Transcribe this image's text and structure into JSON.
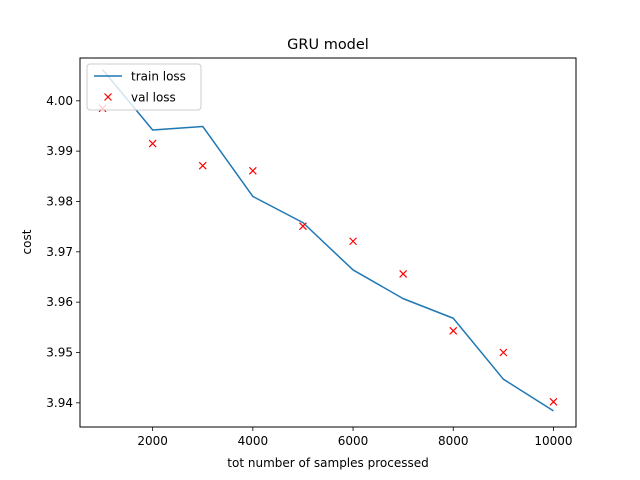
{
  "chart_data": {
    "type": "line",
    "title": "GRU model",
    "xlabel": "tot number of samples processed",
    "ylabel": "cost",
    "xlim": [
      550,
      10450
    ],
    "ylim": [
      3.9352,
      4.0085
    ],
    "xticks": [
      2000,
      4000,
      6000,
      8000,
      10000
    ],
    "xtick_labels": [
      "2000",
      "4000",
      "6000",
      "8000",
      "10000"
    ],
    "yticks": [
      3.94,
      3.95,
      3.96,
      3.97,
      3.98,
      3.99,
      4.0
    ],
    "ytick_labels": [
      "3.94",
      "3.95",
      "3.96",
      "3.97",
      "3.98",
      "3.99",
      "4.00"
    ],
    "grid": false,
    "legend_position": "top-left",
    "series": [
      {
        "name": "train loss",
        "style": "line",
        "color": "#1f77b4",
        "x": [
          1000,
          2000,
          3000,
          4000,
          5000,
          6000,
          7000,
          8000,
          9000,
          10000
        ],
        "y": [
          4.0062,
          3.9942,
          3.9949,
          3.981,
          3.9758,
          3.9664,
          3.9607,
          3.9568,
          3.9447,
          3.9384
        ]
      },
      {
        "name": "val loss",
        "style": "marker-x",
        "color": "#ff0000",
        "x": [
          1000,
          2000,
          3000,
          4000,
          5000,
          6000,
          7000,
          8000,
          9000,
          10000
        ],
        "y": [
          3.9985,
          3.9915,
          3.9871,
          3.9861,
          3.9751,
          3.9721,
          3.9656,
          3.9543,
          3.95,
          3.9402
        ]
      }
    ]
  }
}
